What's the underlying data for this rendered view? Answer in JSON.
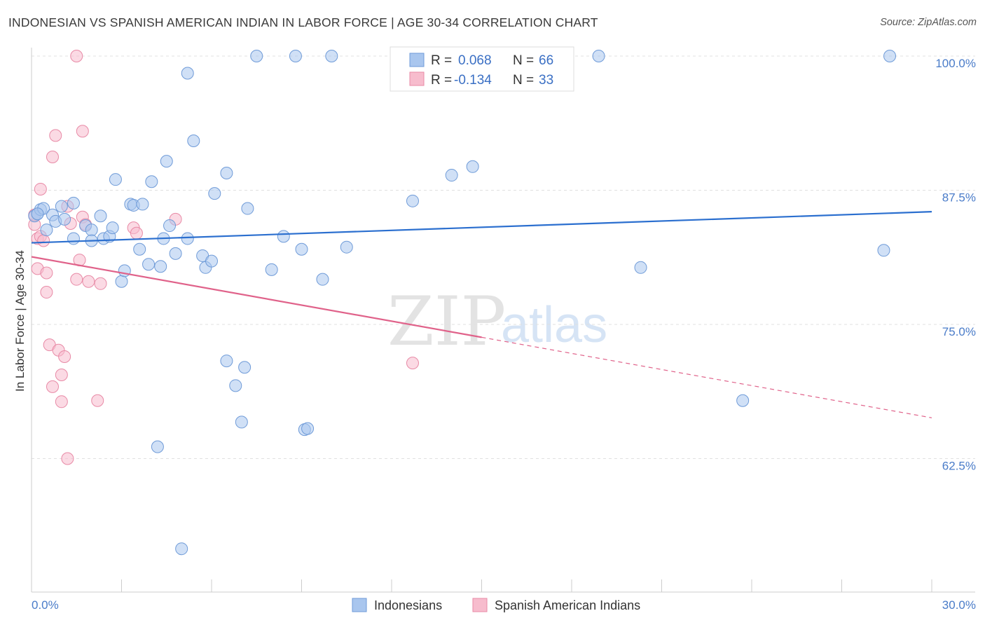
{
  "title": "INDONESIAN VS SPANISH AMERICAN INDIAN IN LABOR FORCE | AGE 30-34 CORRELATION CHART",
  "source": "Source: ZipAtlas.com",
  "watermark": {
    "zip": "ZIP",
    "atlas": "atlas"
  },
  "legend": {
    "indonesians": {
      "r_label": "R =",
      "r_value": "0.068",
      "n_label": "N =",
      "n_value": "66"
    },
    "spanish": {
      "r_label": "R =",
      "r_value": "-0.134",
      "n_label": "N =",
      "n_value": "33"
    }
  },
  "chart_data": {
    "type": "scatter",
    "title": "INDONESIAN VS SPANISH AMERICAN INDIAN IN LABOR FORCE | AGE 30-34 CORRELATION CHART",
    "xlabel": "",
    "ylabel": "In Labor Force | Age 30-34",
    "xlim": [
      0,
      30
    ],
    "ylim": [
      52,
      103
    ],
    "x_tick_labels": [
      "0.0%",
      "30.0%"
    ],
    "y_ticks": [
      62.5,
      75.0,
      87.5,
      100.0
    ],
    "y_tick_labels": [
      "62.5%",
      "75.0%",
      "87.5%",
      "100.0%"
    ],
    "grid": "horizontal dashed",
    "colors": {
      "indonesians_fill": "#a9c6ee",
      "indonesians_stroke": "#6f9bd8",
      "indonesians_line": "#2b6fcf",
      "spanish_fill": "#f7bccd",
      "spanish_stroke": "#e88aa6",
      "spanish_line": "#e0628a"
    },
    "series": [
      {
        "name": "Indonesians",
        "points": [
          [
            0.1,
            85.1
          ],
          [
            0.2,
            85.3
          ],
          [
            0.3,
            85.7
          ],
          [
            0.4,
            85.8
          ],
          [
            0.5,
            83.8
          ],
          [
            0.7,
            85.2
          ],
          [
            0.8,
            84.6
          ],
          [
            1.0,
            86.0
          ],
          [
            1.1,
            84.8
          ],
          [
            1.4,
            86.3
          ],
          [
            1.4,
            83.0
          ],
          [
            1.8,
            84.2
          ],
          [
            2.0,
            83.8
          ],
          [
            2.0,
            82.8
          ],
          [
            2.3,
            85.1
          ],
          [
            2.4,
            83.0
          ],
          [
            2.6,
            83.2
          ],
          [
            2.7,
            84.0
          ],
          [
            2.8,
            88.5
          ],
          [
            3.0,
            79.0
          ],
          [
            3.1,
            80.0
          ],
          [
            3.3,
            86.2
          ],
          [
            3.4,
            86.1
          ],
          [
            3.6,
            82.0
          ],
          [
            3.7,
            86.2
          ],
          [
            3.9,
            80.6
          ],
          [
            4.0,
            88.3
          ],
          [
            4.3,
            80.4
          ],
          [
            4.4,
            83.0
          ],
          [
            4.5,
            90.2
          ],
          [
            4.6,
            84.2
          ],
          [
            4.8,
            81.6
          ],
          [
            5.2,
            98.4
          ],
          [
            5.2,
            83.0
          ],
          [
            5.4,
            92.1
          ],
          [
            5.7,
            81.4
          ],
          [
            5.8,
            80.3
          ],
          [
            6.0,
            80.9
          ],
          [
            6.1,
            87.2
          ],
          [
            6.5,
            71.6
          ],
          [
            6.5,
            89.1
          ],
          [
            6.8,
            69.3
          ],
          [
            7.0,
            65.9
          ],
          [
            7.1,
            71.0
          ],
          [
            7.2,
            85.8
          ],
          [
            7.5,
            100.0
          ],
          [
            8.0,
            80.1
          ],
          [
            8.4,
            83.2
          ],
          [
            8.8,
            100.0
          ],
          [
            9.0,
            82.0
          ],
          [
            9.1,
            65.2
          ],
          [
            9.2,
            65.3
          ],
          [
            9.7,
            79.2
          ],
          [
            10.0,
            100.0
          ],
          [
            10.5,
            82.2
          ],
          [
            12.7,
            86.5
          ],
          [
            14.0,
            88.9
          ],
          [
            14.7,
            89.7
          ],
          [
            18.9,
            100.0
          ],
          [
            20.3,
            80.3
          ],
          [
            23.7,
            67.9
          ],
          [
            28.6,
            100.0
          ],
          [
            28.4,
            81.9
          ],
          [
            4.2,
            63.6
          ],
          [
            5.0,
            54.1
          ],
          [
            0.2,
            85.3
          ]
        ],
        "trend": [
          [
            0,
            82.6
          ],
          [
            30,
            85.5
          ]
        ]
      },
      {
        "name": "Spanish American Indians",
        "points": [
          [
            0.1,
            84.3
          ],
          [
            0.2,
            83.0
          ],
          [
            0.2,
            80.2
          ],
          [
            0.3,
            83.2
          ],
          [
            0.3,
            87.6
          ],
          [
            0.4,
            82.8
          ],
          [
            0.5,
            79.8
          ],
          [
            0.5,
            78.0
          ],
          [
            0.6,
            73.1
          ],
          [
            0.7,
            69.2
          ],
          [
            0.7,
            90.6
          ],
          [
            0.8,
            92.6
          ],
          [
            0.9,
            72.6
          ],
          [
            1.0,
            70.3
          ],
          [
            1.0,
            67.8
          ],
          [
            1.1,
            72.0
          ],
          [
            1.2,
            62.5
          ],
          [
            1.2,
            86.0
          ],
          [
            1.3,
            84.4
          ],
          [
            1.5,
            100.0
          ],
          [
            1.5,
            79.2
          ],
          [
            1.6,
            81.0
          ],
          [
            1.7,
            85.0
          ],
          [
            1.7,
            93.0
          ],
          [
            1.8,
            84.3
          ],
          [
            1.9,
            79.0
          ],
          [
            2.2,
            67.9
          ],
          [
            2.3,
            78.8
          ],
          [
            3.4,
            84.0
          ],
          [
            3.5,
            83.5
          ],
          [
            4.8,
            84.8
          ],
          [
            12.7,
            71.4
          ],
          [
            0.1,
            85.2
          ]
        ],
        "trend_solid": [
          [
            0,
            81.3
          ],
          [
            15,
            73.8
          ]
        ],
        "trend_dashed": [
          [
            15,
            73.8
          ],
          [
            30,
            66.3
          ]
        ]
      }
    ]
  },
  "bottom_legend": [
    "Indonesians",
    "Spanish American Indians"
  ]
}
